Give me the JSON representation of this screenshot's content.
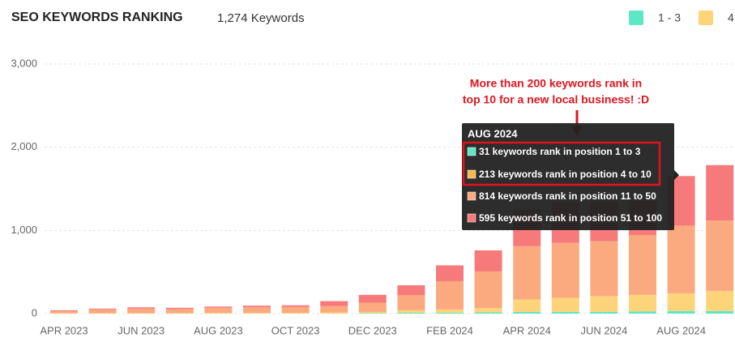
{
  "chart_data": {
    "type": "bar",
    "stacked": true,
    "title": "SEO KEYWORDS RANKING",
    "subtitle": "1,274 Keywords",
    "categories": [
      "APR 2023",
      null,
      "JUN 2023",
      null,
      "AUG 2023",
      null,
      "OCT 2023",
      null,
      "DEC 2023",
      null,
      "FEB 2024",
      null,
      "APR 2024",
      null,
      "JUN 2024",
      null,
      "AUG 2024",
      null
    ],
    "series": [
      {
        "name": "1 - 3",
        "color": "#5ce8c4",
        "values": [
          0,
          0,
          0,
          0,
          0,
          0,
          0,
          0,
          5,
          10,
          10,
          15,
          20,
          20,
          20,
          25,
          31,
          30
        ]
      },
      {
        "name": "4",
        "color": "#fdd47a",
        "values": [
          5,
          5,
          5,
          5,
          10,
          10,
          10,
          15,
          15,
          30,
          40,
          50,
          150,
          170,
          190,
          200,
          213,
          240
        ]
      },
      {
        "color": "#fba97f",
        "values": [
          25,
          45,
          55,
          50,
          60,
          65,
          70,
          75,
          110,
          180,
          340,
          440,
          640,
          660,
          660,
          720,
          814,
          850
        ]
      },
      {
        "color": "#f77a7a",
        "values": [
          10,
          10,
          15,
          15,
          15,
          20,
          20,
          60,
          95,
          120,
          190,
          255,
          440,
          480,
          470,
          410,
          595,
          665
        ]
      }
    ],
    "ylim": [
      0,
      3000
    ],
    "yticks": [
      0,
      {
        "value": 1000,
        "label": "1,000"
      },
      {
        "value": 2000,
        "label": "2,000"
      },
      {
        "value": 3000,
        "label": "3,000"
      }
    ],
    "grid": true,
    "tooltip": {
      "title": "AUG 2024",
      "lines": [
        "31 keywords rank in position 1 to 3",
        "213 keywords rank in position 4 to 10",
        "814 keywords rank in position 11 to 50",
        "595 keywords rank in position 51 to 100"
      ]
    },
    "annotation": [
      "More than 200 keywords rank in",
      "top 10 for a new local business! :D"
    ]
  }
}
